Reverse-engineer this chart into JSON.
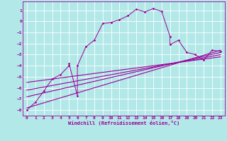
{
  "title": "",
  "xlabel": "Windchill (Refroidissement éolien,°C)",
  "bg_color": "#b2e8e8",
  "grid_color": "#ffffff",
  "line_color": "#990099",
  "xlim": [
    -0.5,
    23.5
  ],
  "ylim": [
    -8.5,
    1.8
  ],
  "xticks": [
    0,
    1,
    2,
    3,
    4,
    5,
    6,
    7,
    8,
    9,
    10,
    11,
    12,
    13,
    14,
    15,
    16,
    17,
    18,
    19,
    20,
    21,
    22,
    23
  ],
  "yticks": [
    1,
    0,
    -1,
    -2,
    -3,
    -4,
    -5,
    -6,
    -7,
    -8
  ],
  "scatter_x": [
    0,
    1,
    2,
    3,
    4,
    5,
    5,
    6,
    6,
    7,
    8,
    9,
    10,
    11,
    12,
    13,
    14,
    15,
    16,
    17,
    17,
    18,
    19,
    20,
    21,
    22,
    23
  ],
  "scatter_y": [
    -8,
    -7.3,
    -6.3,
    -5.2,
    -4.8,
    -4,
    -3.8,
    -6.7,
    -4,
    -2.3,
    -1.7,
    -0.2,
    -0.1,
    0.15,
    0.5,
    1.1,
    0.85,
    1.15,
    0.9,
    -1.35,
    -2.1,
    -1.7,
    -2.8,
    -3,
    -3.5,
    -2.6,
    -2.7
  ],
  "line1_x": [
    0,
    23
  ],
  "line1_y": [
    -7.8,
    -2.6
  ],
  "line2_x": [
    0,
    23
  ],
  "line2_y": [
    -6.8,
    -2.8
  ],
  "line3_x": [
    0,
    23
  ],
  "line3_y": [
    -6.2,
    -3.0
  ],
  "line4_x": [
    0,
    23
  ],
  "line4_y": [
    -5.5,
    -3.2
  ]
}
